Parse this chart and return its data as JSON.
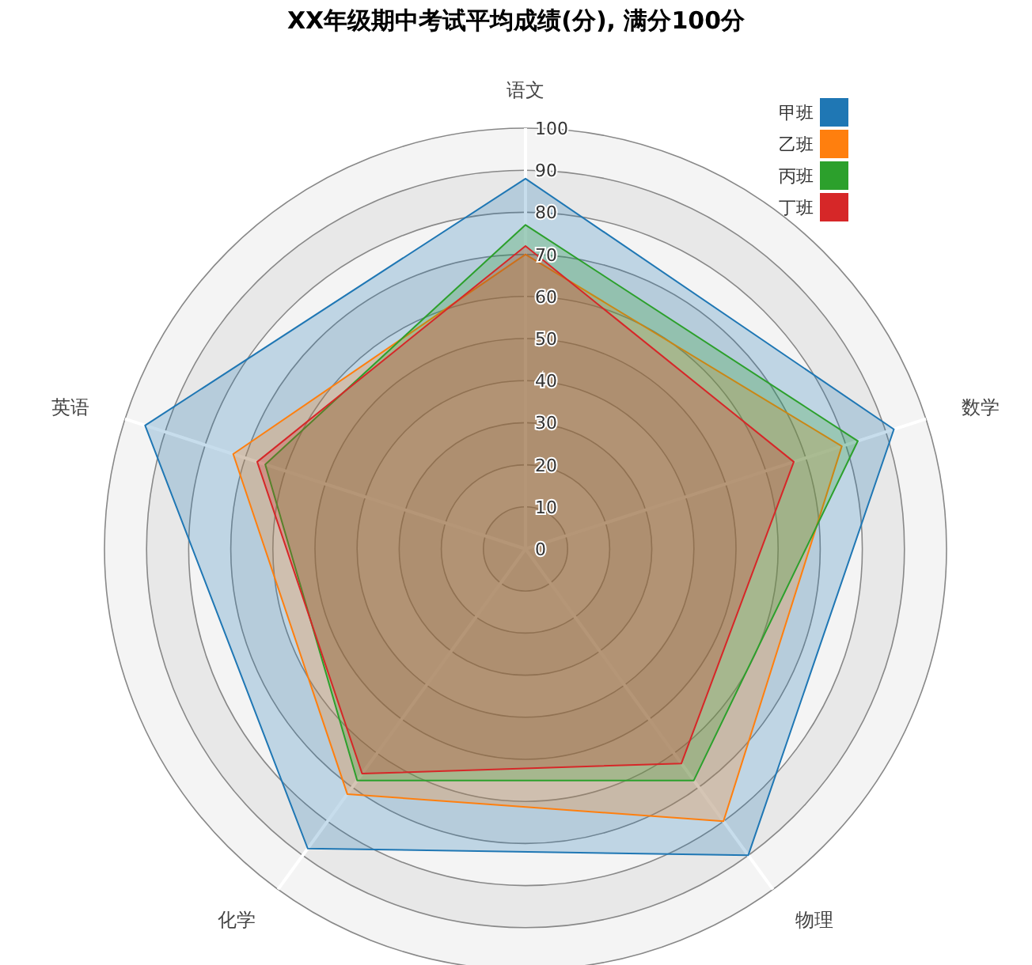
{
  "chart_data": {
    "type": "radar",
    "title": "XX年级期中考试平均成绩(分), 满分100分",
    "categories": [
      "语文",
      "数学",
      "物理",
      "化学",
      "英语"
    ],
    "ylim": [
      0,
      100
    ],
    "yticks": [
      0,
      10,
      20,
      30,
      40,
      50,
      60,
      70,
      80,
      90,
      100
    ],
    "grid": true,
    "legend": "top right",
    "series": [
      {
        "name": "甲班",
        "color": "#1f77b4",
        "values": [
          88,
          92,
          90,
          88,
          95
        ]
      },
      {
        "name": "乙班",
        "color": "#ff7f0e",
        "values": [
          70,
          79,
          80,
          72,
          73
        ]
      },
      {
        "name": "丙班",
        "color": "#2ca02c",
        "values": [
          77,
          83,
          68,
          68,
          65
        ]
      },
      {
        "name": "丁班",
        "color": "#d62728",
        "values": [
          72,
          67,
          63,
          66,
          67
        ]
      }
    ]
  }
}
